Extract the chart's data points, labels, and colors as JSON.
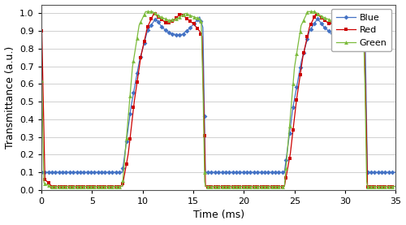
{
  "title": "",
  "xlabel": "Time (ms)",
  "ylabel": "Transmittance (a.u.)",
  "xlim": [
    0,
    35
  ],
  "ylim": [
    0,
    1.05
  ],
  "yticks": [
    0,
    0.1,
    0.2,
    0.3,
    0.4,
    0.5,
    0.6,
    0.7,
    0.8,
    0.9,
    1.0
  ],
  "xticks": [
    0,
    5,
    10,
    15,
    20,
    25,
    30,
    35
  ],
  "blue_color": "#4472C4",
  "red_color": "#CC0000",
  "green_color": "#7CBB3C",
  "legend_labels": [
    "Blue",
    "Red",
    "Green"
  ],
  "rise1": 8.0,
  "fall1": 16.2,
  "rise2": 24.0,
  "fall2": 32.2,
  "blue_low": 0.1,
  "red_low": 0.02,
  "green_low": 0.02,
  "blue_init": 0.1,
  "red_init": 0.9,
  "green_init": 0.62
}
